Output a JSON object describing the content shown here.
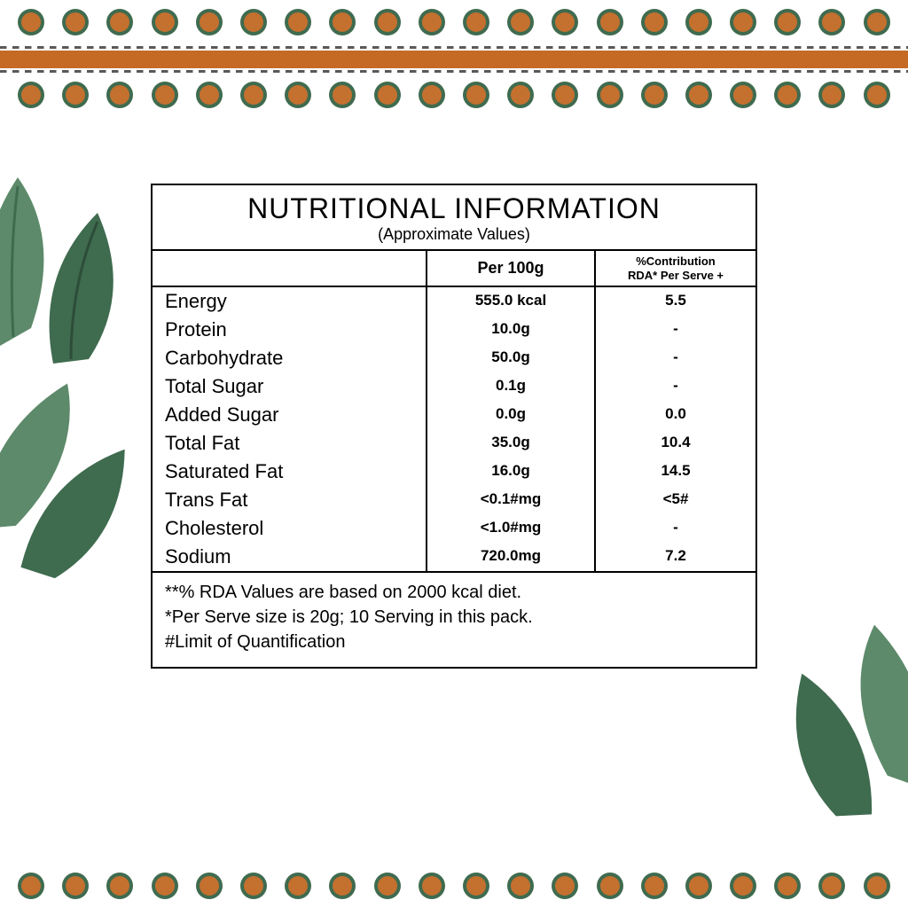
{
  "decor": {
    "dot_fill": "#c4702f",
    "dot_ring": "#3f6b4f",
    "dot_count": 20,
    "bar_color": "#c56a24",
    "dash_color": "#595959",
    "leaf_colors": {
      "dark": "#3f6b4f",
      "mid": "#5d8a6a",
      "light": "#8aad90"
    }
  },
  "panel": {
    "title": "NUTRITIONAL INFORMATION",
    "subtitle": "(Approximate Values)",
    "header_per": "Per 100g",
    "header_rda_l1": "%Contribution",
    "header_rda_l2": "RDA* Per Serve +",
    "rows": [
      {
        "name": "Energy",
        "per": "555.0 kcal",
        "rda": "5.5"
      },
      {
        "name": "Protein",
        "per": "10.0g",
        "rda": "-"
      },
      {
        "name": "Carbohydrate",
        "per": "50.0g",
        "rda": "-"
      },
      {
        "name": "Total Sugar",
        "per": "0.1g",
        "rda": "-"
      },
      {
        "name": "Added Sugar",
        "per": "0.0g",
        "rda": "0.0"
      },
      {
        "name": "Total Fat",
        "per": "35.0g",
        "rda": "10.4"
      },
      {
        "name": "Saturated Fat",
        "per": "16.0g",
        "rda": "14.5"
      },
      {
        "name": "Trans Fat",
        "per": "<0.1#mg",
        "rda": "<5#"
      },
      {
        "name": "Cholesterol",
        "per": "<1.0#mg",
        "rda": "-"
      },
      {
        "name": "Sodium",
        "per": "720.0mg",
        "rda": "7.2"
      }
    ],
    "footnotes": [
      "**% RDA Values are based on 2000 kcal diet.",
      "*Per Serve size is 20g; 10 Serving in this pack.",
      "#Limit of Quantification"
    ]
  }
}
